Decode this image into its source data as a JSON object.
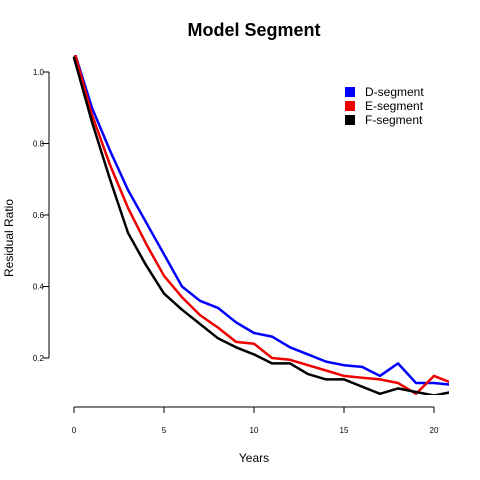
{
  "chart_data": {
    "type": "line",
    "title": "Model Segment",
    "xlabel": "Years",
    "ylabel": "Residual Ratio",
    "xlim": [
      0,
      21
    ],
    "ylim": [
      0.1,
      1.0
    ],
    "x_ticks": [
      0,
      5,
      10,
      15,
      20
    ],
    "y_ticks": [
      0.2,
      0.4,
      0.6,
      0.8,
      1.0
    ],
    "y_tick_labels": [
      "0.2",
      "0.4",
      "0.6",
      "0.8",
      "1.0"
    ],
    "grid": false,
    "legend_position": "top-right",
    "x": [
      0,
      1,
      2,
      3,
      4,
      5,
      6,
      7,
      8,
      9,
      10,
      11,
      12,
      13,
      14,
      15,
      16,
      17,
      18,
      19,
      20,
      21
    ],
    "series": [
      {
        "name": "D-segment",
        "color": "#0000ff",
        "values": [
          1.06,
          0.9,
          0.78,
          0.67,
          0.58,
          0.49,
          0.4,
          0.36,
          0.34,
          0.3,
          0.27,
          0.26,
          0.23,
          0.21,
          0.19,
          0.18,
          0.175,
          0.15,
          0.185,
          0.13,
          0.13,
          0.125
        ]
      },
      {
        "name": "E-segment",
        "color": "#ee0000",
        "values": [
          1.06,
          0.88,
          0.74,
          0.62,
          0.52,
          0.43,
          0.37,
          0.32,
          0.285,
          0.245,
          0.24,
          0.2,
          0.195,
          0.18,
          0.165,
          0.15,
          0.145,
          0.14,
          0.13,
          0.1,
          0.15,
          0.13
        ]
      },
      {
        "name": "F-segment",
        "color": "#000000",
        "values": [
          1.04,
          0.86,
          0.7,
          0.55,
          0.46,
          0.38,
          0.335,
          0.295,
          0.255,
          0.23,
          0.21,
          0.185,
          0.185,
          0.155,
          0.14,
          0.14,
          0.12,
          0.1,
          0.115,
          0.105,
          0.095,
          0.105
        ]
      }
    ]
  }
}
